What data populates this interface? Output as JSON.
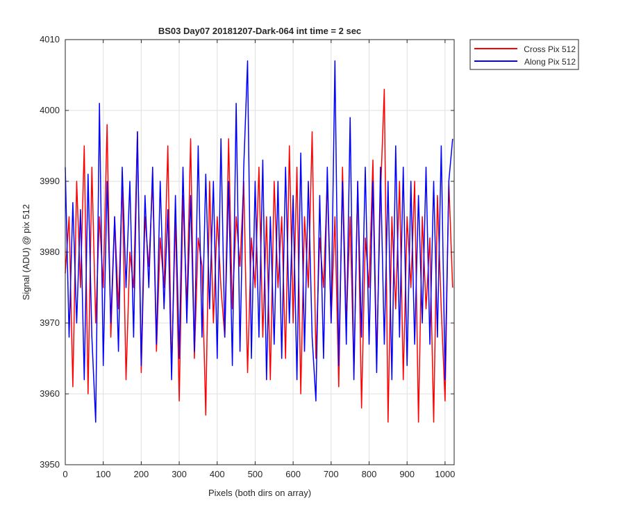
{
  "chart_data": {
    "type": "line",
    "title": "BS03 Day07 20181207-Dark-064 int time = 2 sec",
    "xlabel": "Pixels (both dirs on array)",
    "ylabel": "Signal (ADU) @ pix 512",
    "xlim": [
      0,
      1024
    ],
    "ylim": [
      3950,
      4010
    ],
    "xticks": [
      "0",
      "100",
      "200",
      "300",
      "400",
      "500",
      "600",
      "700",
      "800",
      "900",
      "1000"
    ],
    "yticks": [
      "3950",
      "3960",
      "3970",
      "3980",
      "3990",
      "4000",
      "4010"
    ],
    "grid": true,
    "legend_position": "outside-top-right",
    "series": [
      {
        "name": "Cross Pix 512",
        "color": "#ff0000",
        "x": [
          0,
          10,
          20,
          30,
          40,
          50,
          60,
          70,
          80,
          90,
          100,
          110,
          120,
          130,
          140,
          150,
          160,
          170,
          180,
          190,
          200,
          210,
          220,
          230,
          240,
          250,
          260,
          270,
          280,
          290,
          300,
          310,
          320,
          330,
          340,
          350,
          360,
          370,
          380,
          390,
          400,
          410,
          420,
          430,
          440,
          450,
          460,
          470,
          480,
          490,
          500,
          510,
          520,
          530,
          540,
          550,
          560,
          570,
          580,
          590,
          600,
          610,
          620,
          630,
          640,
          650,
          660,
          670,
          680,
          690,
          700,
          710,
          720,
          730,
          740,
          750,
          760,
          770,
          780,
          790,
          800,
          810,
          820,
          830,
          840,
          850,
          860,
          870,
          880,
          890,
          900,
          910,
          920,
          930,
          940,
          950,
          960,
          970,
          980,
          990,
          1000,
          1010,
          1020
        ],
        "values": [
          3977,
          3985,
          3961,
          3990,
          3975,
          3995,
          3960,
          3992,
          3970,
          3985,
          3975,
          3998,
          3968,
          3985,
          3972,
          3990,
          3962,
          3980,
          3975,
          3997,
          3963,
          3985,
          3978,
          3990,
          3966,
          3982,
          3975,
          3995,
          3963,
          3985,
          3959,
          3988,
          3972,
          3996,
          3965,
          3982,
          3978,
          3957,
          3990,
          3970,
          3985,
          3975,
          3968,
          3996,
          3972,
          3985,
          3978,
          3990,
          3963,
          3982,
          3975,
          3992,
          3968,
          3985,
          3962,
          3990,
          3975,
          3985,
          3965,
          3995,
          3970,
          3992,
          3960,
          3985,
          3975,
          3997,
          3965,
          3982,
          3975,
          3990,
          3970,
          3985,
          3961,
          3992,
          3970,
          3985,
          3963,
          3990,
          3958,
          3982,
          3975,
          3993,
          3965,
          3988,
          4003,
          3956,
          3985,
          3972,
          3990,
          3962,
          3985,
          3975,
          3990,
          3956,
          3985,
          3972,
          3982,
          3956,
          3988,
          3972,
          3959,
          3990,
          3975
        ]
      },
      {
        "name": "Along Pix 512",
        "color": "#0000ff",
        "x": [
          0,
          10,
          20,
          30,
          40,
          50,
          60,
          70,
          80,
          90,
          100,
          110,
          120,
          130,
          140,
          150,
          160,
          170,
          180,
          190,
          200,
          210,
          220,
          230,
          240,
          250,
          260,
          270,
          280,
          290,
          300,
          310,
          320,
          330,
          340,
          350,
          360,
          370,
          380,
          390,
          400,
          410,
          420,
          430,
          440,
          450,
          460,
          470,
          480,
          490,
          500,
          510,
          520,
          530,
          540,
          550,
          560,
          570,
          580,
          590,
          600,
          610,
          620,
          630,
          640,
          650,
          660,
          670,
          680,
          690,
          700,
          710,
          720,
          730,
          740,
          750,
          760,
          770,
          780,
          790,
          800,
          810,
          820,
          830,
          840,
          850,
          860,
          870,
          880,
          890,
          900,
          910,
          920,
          930,
          940,
          950,
          960,
          970,
          980,
          990,
          1000,
          1010,
          1020
        ],
        "values": [
          3992,
          3968,
          3987,
          3970,
          3986,
          3962,
          3991,
          3968,
          3956,
          4001,
          3964,
          3990,
          3970,
          3985,
          3966,
          3992,
          3975,
          3990,
          3968,
          3997,
          3964,
          3988,
          3975,
          3992,
          3967,
          3990,
          3972,
          3986,
          3962,
          3988,
          3965,
          3992,
          3970,
          3988,
          3966,
          3995,
          3968,
          3991,
          3972,
          3990,
          3965,
          3996,
          3968,
          3990,
          3964,
          4001,
          3966,
          3992,
          4007,
          3965,
          3990,
          3968,
          3993,
          3962,
          3985,
          3967,
          3990,
          3965,
          3992,
          3970,
          3988,
          3962,
          3994,
          3966,
          3990,
          3968,
          3959,
          3988,
          3965,
          3992,
          3970,
          4007,
          3964,
          3990,
          3967,
          3999,
          3962,
          3990,
          3968,
          3992,
          3967,
          3990,
          3963,
          3992,
          3967,
          3990,
          3962,
          3995,
          3968,
          3992,
          3964,
          3990,
          3967,
          3988,
          3970,
          3992,
          3967,
          3990,
          3968,
          3995,
          3962,
          3990,
          3996
        ]
      }
    ]
  }
}
